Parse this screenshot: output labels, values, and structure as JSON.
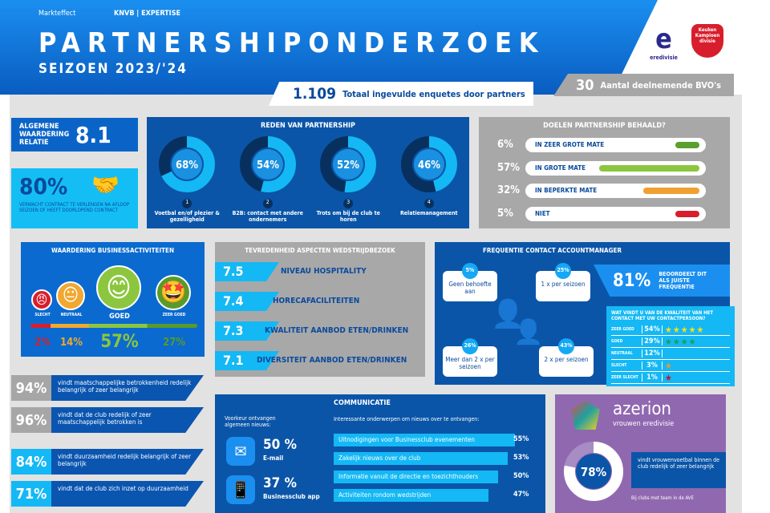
{
  "header": {
    "brand1": "Markteffect",
    "brand2": "KNVB | EXPERTISE",
    "title": "PARTNERSHIPONDERZOEK",
    "season": "SEIZOEN 2023/'24",
    "logo_eredivisie": "eredivisie",
    "logo_kkd": "Keuken Kampioen divisie"
  },
  "totals": {
    "responses": "1.109",
    "responses_label": "Totaal ingevulde enquetes door partners",
    "clubs": "30",
    "clubs_label": "Aantal deelnemende BVO's"
  },
  "overall": {
    "label": "ALGEMENE WAARDERING RELATIE",
    "score": "8.1"
  },
  "contract": {
    "pct": "80%",
    "label": "VERWACHT CONTRACT TE VERLENGEN NA AFLOOP SEIZOEN OF HEEFT DOORLOPEND CONTRACT",
    "icon": "handshake-icon"
  },
  "reasons": {
    "title": "REDEN VAN PARTNERSHIP",
    "items": [
      {
        "rank": "1",
        "pct": "68%",
        "value": 68,
        "label": "Voetbal en/of plezier & gezelligheid"
      },
      {
        "rank": "2",
        "pct": "54%",
        "value": 54,
        "label": "B2B: contact met andere ondernemers"
      },
      {
        "rank": "3",
        "pct": "52%",
        "value": 52,
        "label": "Trots om bij de club te horen"
      },
      {
        "rank": "4",
        "pct": "46%",
        "value": 46,
        "label": "Relatiemanagement"
      }
    ]
  },
  "goals": {
    "title": "DOELEN PARTNERSHIP BEHAALD?",
    "items": [
      {
        "pct": "6%",
        "label": "IN ZEER GROTE MATE",
        "value": 6,
        "color": "#5aa02c"
      },
      {
        "pct": "57%",
        "label": "IN GROTE MATE",
        "value": 57,
        "color": "#8cc63f"
      },
      {
        "pct": "32%",
        "label": "IN BEPERKTE MATE",
        "value": 32,
        "color": "#f0a030"
      },
      {
        "pct": "5%",
        "label": "NIET",
        "value": 5,
        "color": "#d81e2c"
      }
    ]
  },
  "business": {
    "title": "WAARDERING BUSINESSACTIVITEITEN",
    "items": [
      {
        "label": "SLECHT",
        "pct": "2%",
        "color": "#d81e2c"
      },
      {
        "label": "NEUTRAAL",
        "pct": "14%",
        "color": "#f0a830"
      },
      {
        "label": "GOED",
        "pct": "57%",
        "color": "#8cc63f"
      },
      {
        "label": "ZEER GOED",
        "pct": "27%",
        "color": "#5a9a2a"
      }
    ]
  },
  "matchday": {
    "title": "TEVREDENHEID ASPECTEN WEDSTRIJDBEZOEK",
    "items": [
      {
        "score": "7.5",
        "label": "NIVEAU HOSPITALITY"
      },
      {
        "score": "7.4",
        "label": "HORECAFACILITEITEN"
      },
      {
        "score": "7.3",
        "label": "KWALITEIT AANBOD ETEN/DRINKEN"
      },
      {
        "score": "7.1",
        "label": "DIVERSITEIT AANBOD ETEN/DRINKEN"
      }
    ]
  },
  "frequency": {
    "title": "FREQUENTIE CONTACT ACCOUNTMANAGER",
    "bubbles": [
      {
        "pct": "5%",
        "label": "Geen behoefte aan"
      },
      {
        "pct": "25%",
        "label": "1 x per seizoen"
      },
      {
        "pct": "26%",
        "label": "Meer dan 2 x per seizoen"
      },
      {
        "pct": "43%",
        "label": "2 x per seizoen"
      }
    ],
    "right_pct": "81%",
    "right_label": "BEOORDEELT DIT ALS JUISTE FREQUENTIE"
  },
  "quality": {
    "title": "WAT VINDT U VAN DE KWALITEIT VAN HET CONTACT MET UW CONTACTPERSOON?",
    "rows": [
      {
        "label": "ZEER GOED",
        "pct": "54%",
        "stars": "★★★★★",
        "color": "#f5e020"
      },
      {
        "label": "GOED",
        "pct": "29%",
        "stars": "★★★★",
        "color": "#1aa050"
      },
      {
        "label": "NEUTRAAL",
        "pct": "12%",
        "stars": "",
        "color": "#fff"
      },
      {
        "label": "SLECHT",
        "pct": "3%",
        "stars": "★",
        "color": "#e89a30"
      },
      {
        "label": "ZEER SLECHT",
        "pct": "1%",
        "stars": "★",
        "color": "#c8102e"
      }
    ]
  },
  "social": [
    {
      "pct": "94%",
      "label": "vindt maatschappelijke betrokkenheid redelijk belangrijk of zeer belangrijk",
      "color": "#a6a6a6"
    },
    {
      "pct": "96%",
      "label": "vindt dat de club redelijk of zeer maatschappelijk betrokken is",
      "color": "#a6a6a6"
    },
    {
      "pct": "84%",
      "label": "vindt duurzaamheid redelijk belangrijk of zeer belangrijk",
      "color": "#14b8f5"
    },
    {
      "pct": "71%",
      "label": "vindt dat de club zich inzet op duurzaamheid",
      "color": "#14b8f5"
    }
  ],
  "communication": {
    "title": "COMMUNICATIE",
    "pref_label": "Voorkeur ontvangen algemeen nieuws:",
    "channels": [
      {
        "pct": "50 %",
        "label": "E-mail",
        "icon": "envelope-icon"
      },
      {
        "pct": "37 %",
        "label": "Businessclub app",
        "icon": "phone-icon"
      }
    ],
    "topics_title": "Interessante onderwerpen om nieuws over te ontvangen:",
    "topics": [
      {
        "label": "Uitnodigingen voor Businessclub evenementen",
        "pct": "55%",
        "value": 55
      },
      {
        "label": "Zakelijk nieuws over de club",
        "pct": "53%",
        "value": 53
      },
      {
        "label": "Informatie vanuit de directie en toezichthouders",
        "pct": "50%",
        "value": 50
      },
      {
        "label": "Activiteiten rondom wedstrijden",
        "pct": "47%",
        "value": 47
      }
    ]
  },
  "women": {
    "logo": "azerion",
    "logo_sub": "vrouwen eredivisie",
    "pct": "78%",
    "value": 78,
    "label": "vindt vrouwenvoetbal binnen de club redelijk of zeer belangrijk",
    "note": "Bij clubs met team in de AVE"
  }
}
